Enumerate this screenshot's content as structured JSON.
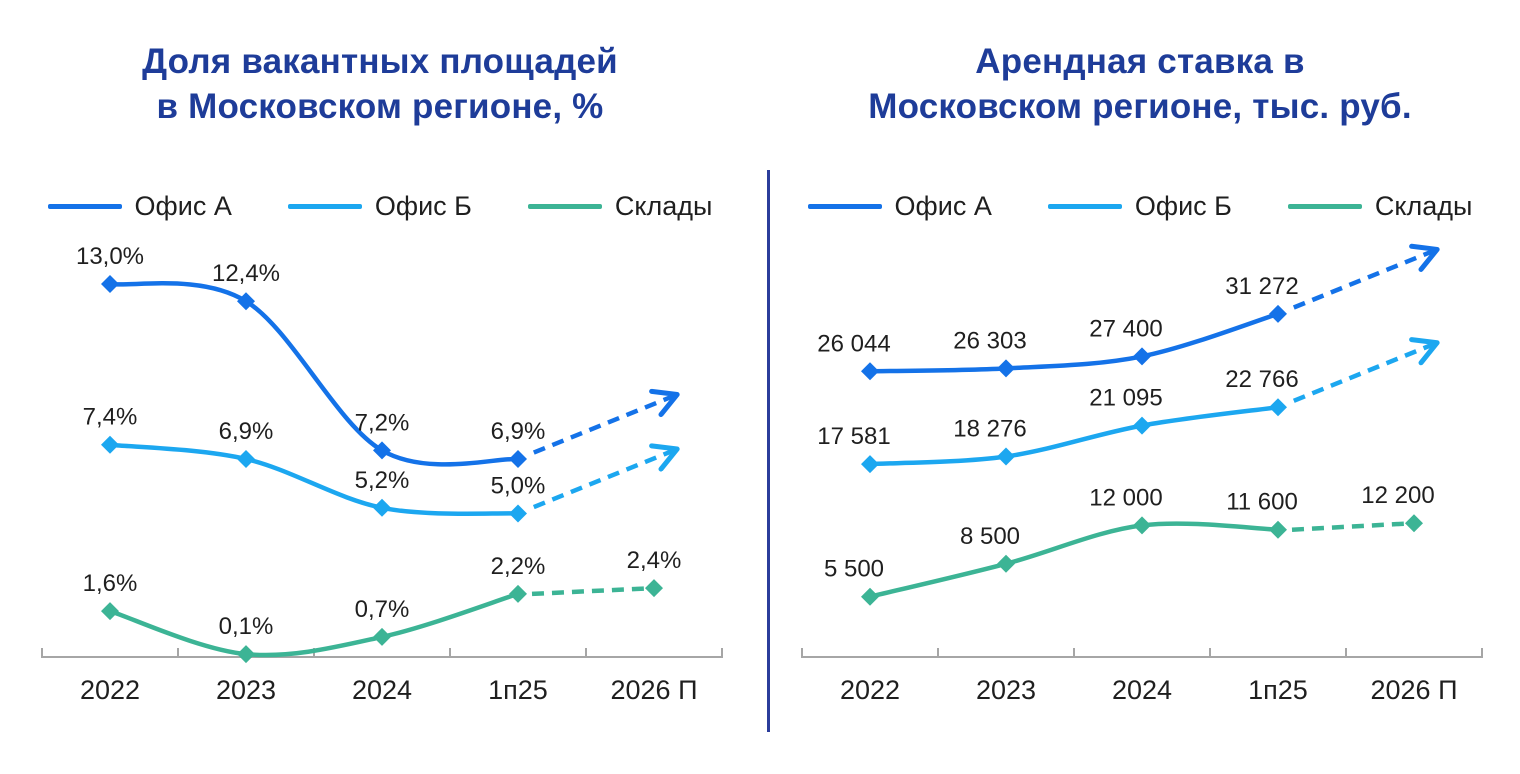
{
  "accent_color": "#1E3C99",
  "divider_color": "#2B3D9B",
  "axis_color": "#A6A6A6",
  "chart_data": [
    {
      "key": "vacancy-share",
      "type": "line",
      "title": "Доля вакантных площадей\nв Московском регионе, %",
      "categories": [
        "2022",
        "2023",
        "2024",
        "1п25",
        "2026 П"
      ],
      "ylim": [
        0,
        13
      ],
      "grid": false,
      "legend_position": "top",
      "label_dx": 0,
      "series": [
        {
          "key": "office-a",
          "name": "Офис А",
          "color": "#1472E8",
          "values": [
            13.0,
            12.4,
            7.2,
            6.9,
            null
          ],
          "labels": [
            "13,0%",
            "12,4%",
            "7,2%",
            "6,9%",
            null
          ],
          "forecast": "arrow"
        },
        {
          "key": "office-b",
          "name": "Офис Б",
          "color": "#1CA7F0",
          "values": [
            7.4,
            6.9,
            5.2,
            5.0,
            null
          ],
          "labels": [
            "7,4%",
            "6,9%",
            "5,2%",
            "5,0%",
            null
          ],
          "forecast": "arrow"
        },
        {
          "key": "warehouses",
          "name": "Склады",
          "color": "#3CB495",
          "values": [
            1.6,
            0.1,
            0.7,
            2.2,
            2.4
          ],
          "labels": [
            "1,6%",
            "0,1%",
            "0,7%",
            "2,2%",
            "2,4%"
          ],
          "forecast": "dashed_segment",
          "dashed_from": 3
        }
      ]
    },
    {
      "key": "rental-rate",
      "type": "line",
      "title": "Арендная ставка в\nМосковском регионе, тыс. руб.",
      "categories": [
        "2022",
        "2023",
        "2024",
        "1п25",
        "2026 П"
      ],
      "ylim": [
        0,
        34000
      ],
      "grid": false,
      "legend_position": "top",
      "label_dx": -16,
      "series": [
        {
          "key": "office-a",
          "name": "Офис А",
          "color": "#1472E8",
          "values": [
            26044,
            26303,
            27400,
            31272,
            null
          ],
          "labels": [
            "26 044",
            "26 303",
            "27 400",
            "31 272",
            null
          ],
          "forecast": "arrow"
        },
        {
          "key": "office-b",
          "name": "Офис Б",
          "color": "#1CA7F0",
          "values": [
            17581,
            18276,
            21095,
            22766,
            null
          ],
          "labels": [
            "17 581",
            "18 276",
            "21 095",
            "22 766",
            null
          ],
          "forecast": "arrow"
        },
        {
          "key": "warehouses",
          "name": "Склады",
          "color": "#3CB495",
          "values": [
            5500,
            8500,
            12000,
            11600,
            12200
          ],
          "labels": [
            "5 500",
            "8 500",
            "12 000",
            "11 600",
            "12 200"
          ],
          "forecast": "dashed_segment",
          "dashed_from": 3
        }
      ]
    }
  ]
}
